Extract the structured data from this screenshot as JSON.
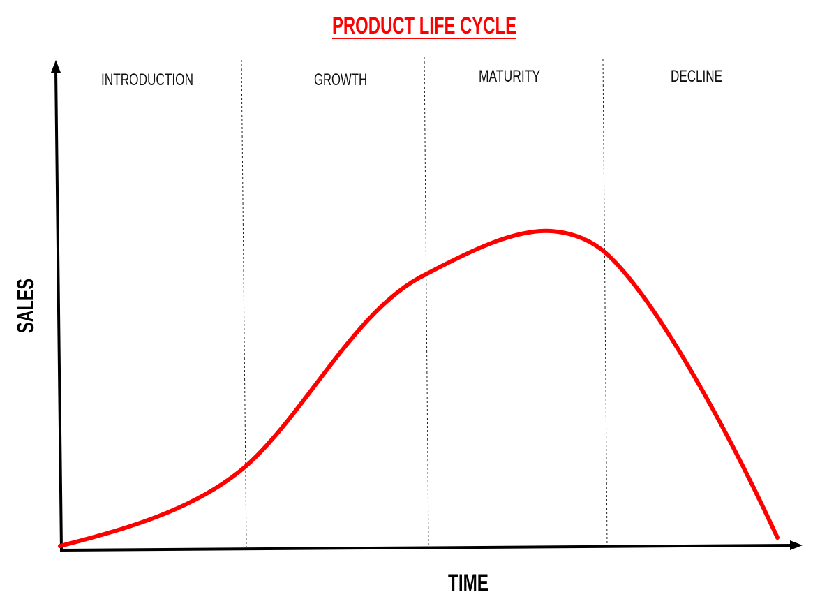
{
  "title": "PRODUCT LIFE CYCLE",
  "axes": {
    "x_label": "TIME",
    "y_label": "SALES"
  },
  "stages": [
    {
      "name": "INTRODUCTION"
    },
    {
      "name": "GROWTH"
    },
    {
      "name": "MATURITY"
    },
    {
      "name": "DECLINE"
    }
  ],
  "colors": {
    "title": "#ff0000",
    "curve": "#ff0000",
    "axes": "#000000",
    "dividers": "#222222"
  }
}
